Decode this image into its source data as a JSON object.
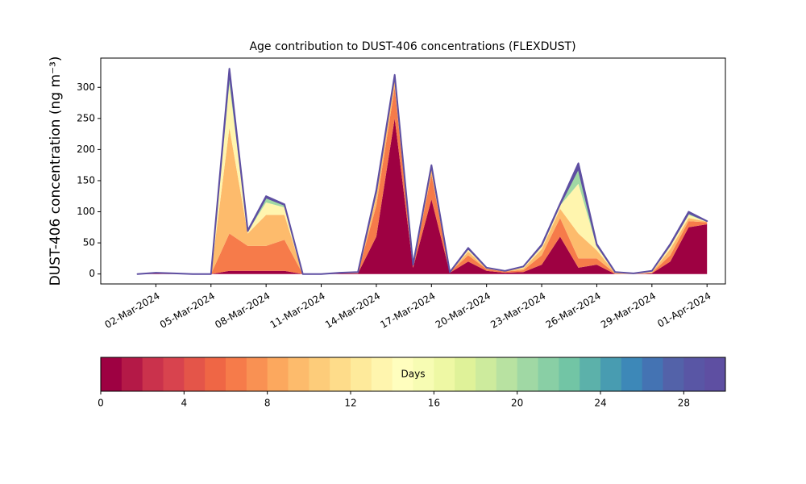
{
  "chart_data": {
    "type": "stacked_area",
    "title": "Age contribution to DUST-406 concentrations (FLEXDUST)",
    "y_label": "DUST-406 concentration (ng m⁻³)",
    "x": [
      "2024-03-01",
      "2024-03-02",
      "2024-03-03",
      "2024-03-04",
      "2024-03-05",
      "2024-03-06",
      "2024-03-07",
      "2024-03-08",
      "2024-03-09",
      "2024-03-10",
      "2024-03-11",
      "2024-03-12",
      "2024-03-13",
      "2024-03-14",
      "2024-03-15",
      "2024-03-16",
      "2024-03-17",
      "2024-03-18",
      "2024-03-19",
      "2024-03-20",
      "2024-03-21",
      "2024-03-22",
      "2024-03-23",
      "2024-03-24",
      "2024-03-25",
      "2024-03-26",
      "2024-03-27",
      "2024-03-28",
      "2024-03-29",
      "2024-03-30",
      "2024-03-31",
      "2024-04-01"
    ],
    "series": [
      {
        "color": "#9e0142",
        "values": [
          0,
          1,
          0,
          0,
          0,
          5,
          5,
          5,
          5,
          0,
          0,
          1,
          1,
          60,
          250,
          10,
          120,
          2,
          20,
          5,
          2,
          3,
          15,
          60,
          10,
          15,
          0,
          0,
          1,
          20,
          75,
          80
        ]
      },
      {
        "color": "#f67b4a",
        "values": [
          0,
          1,
          1,
          0,
          0,
          60,
          40,
          40,
          50,
          0,
          0,
          1,
          1,
          50,
          50,
          3,
          40,
          1,
          10,
          3,
          2,
          3,
          15,
          30,
          15,
          10,
          1,
          0,
          1,
          10,
          10,
          3
        ]
      },
      {
        "color": "#fdbb6c",
        "values": [
          0,
          0,
          0,
          0,
          0,
          170,
          20,
          50,
          40,
          0,
          0,
          0,
          1,
          15,
          15,
          1,
          10,
          0,
          6,
          1,
          1,
          3,
          10,
          15,
          40,
          13,
          1,
          0,
          1,
          10,
          5,
          1
        ]
      },
      {
        "color": "#fff5ae",
        "values": [
          0,
          0,
          0,
          0,
          0,
          70,
          3,
          20,
          12,
          0,
          0,
          0,
          0,
          5,
          3,
          1,
          3,
          0,
          4,
          1,
          0,
          2,
          5,
          5,
          80,
          6,
          1,
          1,
          1,
          5,
          5,
          0
        ]
      },
      {
        "color": "#a0d8a4",
        "values": [
          0,
          0,
          0,
          0,
          0,
          20,
          1,
          8,
          4,
          0,
          0,
          0,
          0,
          3,
          1,
          0,
          1,
          0,
          1,
          0,
          0,
          1,
          1,
          2,
          25,
          3,
          0,
          0,
          1,
          2,
          3,
          1
        ]
      },
      {
        "color": "#5e4fa2",
        "values": [
          0,
          0,
          0,
          0,
          0,
          5,
          1,
          2,
          1,
          0,
          0,
          0,
          0,
          2,
          1,
          0,
          1,
          0,
          1,
          0,
          0,
          0,
          1,
          1,
          8,
          1,
          0,
          0,
          0,
          1,
          2,
          0
        ]
      }
    ],
    "xlim": [
      "2024-02-28",
      "2024-04-02"
    ],
    "xticks": [
      {
        "value": "2024-03-02",
        "label": "02-Mar-2024"
      },
      {
        "value": "2024-03-05",
        "label": "05-Mar-2024"
      },
      {
        "value": "2024-03-08",
        "label": "08-Mar-2024"
      },
      {
        "value": "2024-03-11",
        "label": "11-Mar-2024"
      },
      {
        "value": "2024-03-14",
        "label": "14-Mar-2024"
      },
      {
        "value": "2024-03-17",
        "label": "17-Mar-2024"
      },
      {
        "value": "2024-03-20",
        "label": "20-Mar-2024"
      },
      {
        "value": "2024-03-23",
        "label": "23-Mar-2024"
      },
      {
        "value": "2024-03-26",
        "label": "26-Mar-2024"
      },
      {
        "value": "2024-03-29",
        "label": "29-Mar-2024"
      },
      {
        "value": "2024-04-01",
        "label": "01-Apr-2024"
      }
    ],
    "ylim": [
      -16,
      347
    ],
    "yticks": [
      0,
      50,
      100,
      150,
      200,
      250,
      300
    ],
    "colorbar": {
      "label": "Days",
      "lim": [
        0,
        30
      ],
      "ticks": [
        0,
        4,
        8,
        12,
        16,
        20,
        24,
        28
      ],
      "colors": [
        "#9e0142",
        "#b41947",
        "#ca324c",
        "#d8434e",
        "#e45549",
        "#ef6645",
        "#f67b4a",
        "#f99153",
        "#fca85e",
        "#fdbb6c",
        "#fdcc7a",
        "#fedc8a",
        "#feea9b",
        "#fff5ae",
        "#fffebe",
        "#f7fcb3",
        "#eef8a4",
        "#dff299",
        "#cdeb9d",
        "#b8e2a1",
        "#a0d8a4",
        "#89cfa5",
        "#72c5a5",
        "#5cb1aa",
        "#489cb1",
        "#3d88b8",
        "#4473b3",
        "#5362a9",
        "#5956a5",
        "#5e4fa2"
      ]
    }
  }
}
